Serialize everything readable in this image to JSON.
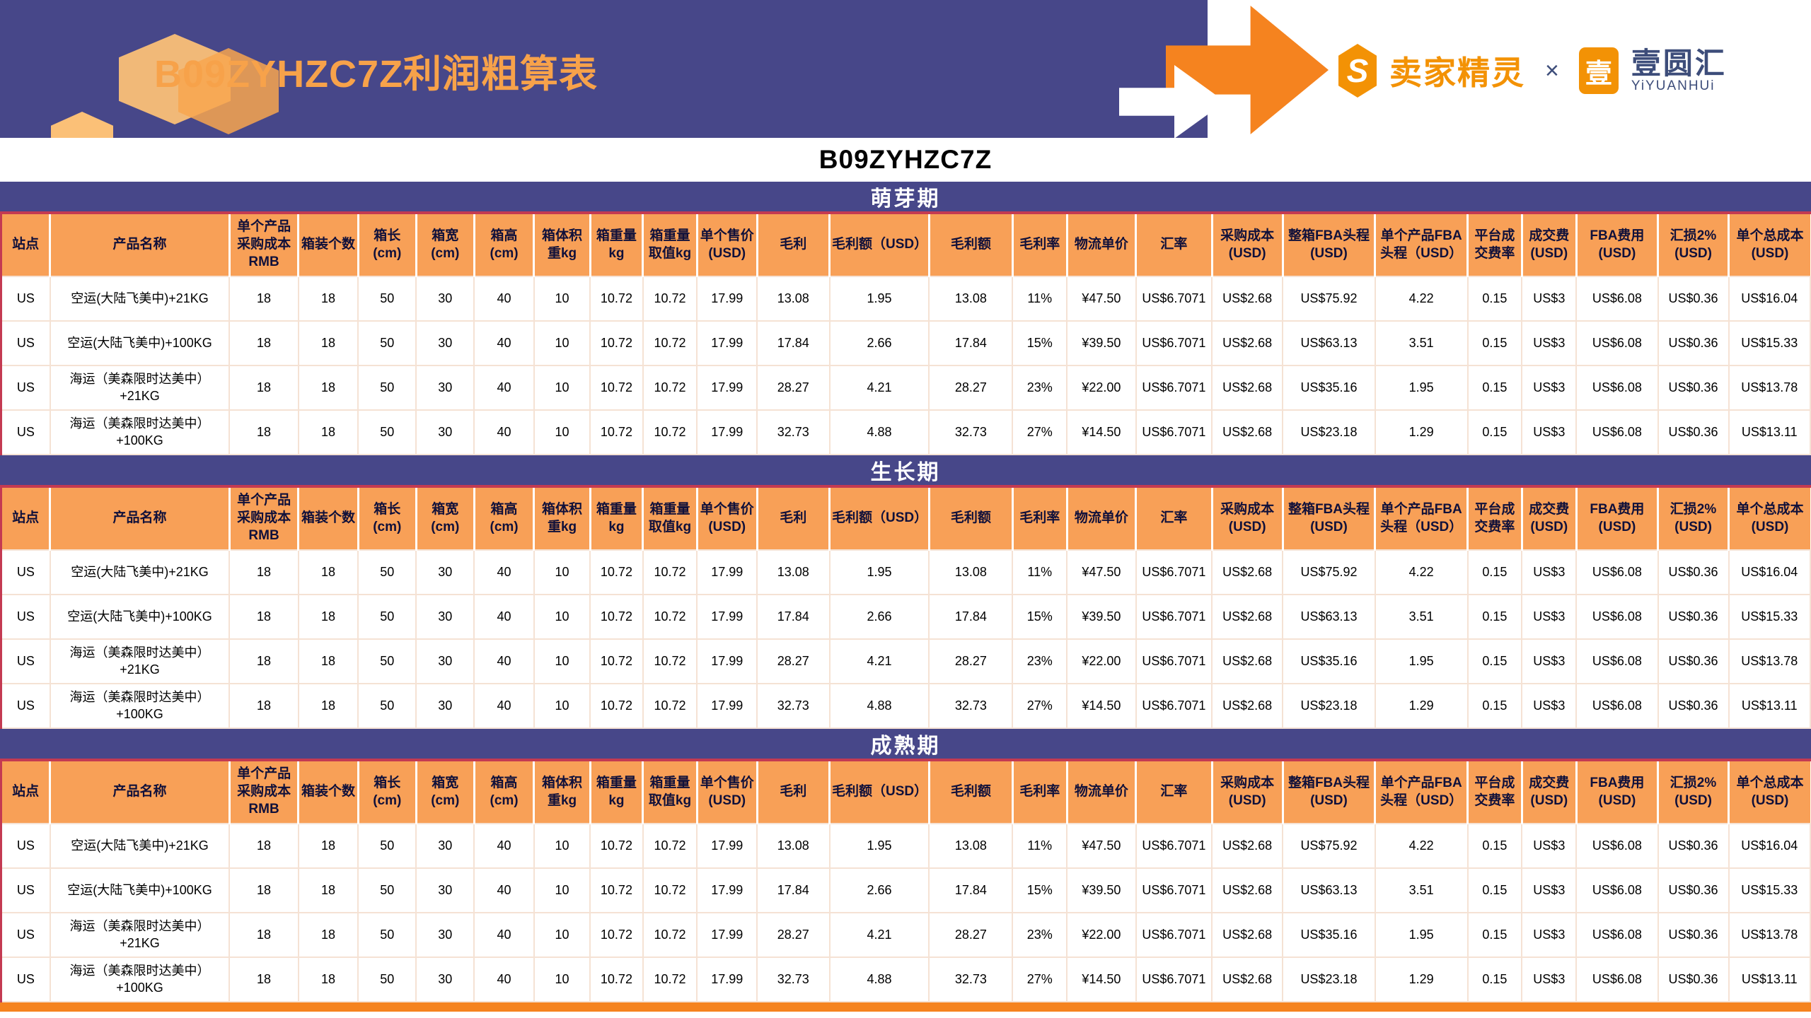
{
  "banner": {
    "title": "B09ZYHZC7Z利润粗算表",
    "sellersprite_mark": "S",
    "sellersprite_name": "卖家精灵",
    "collab_x": "×",
    "yiyuanhui_mark": "壹",
    "yiyuanhui_name": "壹圆汇",
    "yiyuanhui_sub": "YiYUANHUi"
  },
  "subtitle": "B09ZYHZC7Z",
  "colors": {
    "navy": "#474789",
    "header_orange": "#f8a057",
    "accent_orange": "#f5831f",
    "crimson_border": "#c43a52",
    "cell_border": "#f5e2d4",
    "title_orange": "#f7a24a"
  },
  "table": {
    "columns": [
      "站点",
      "产品名称",
      "单个产品采购成本RMB",
      "箱装个数",
      "箱长(cm)",
      "箱宽(cm)",
      "箱高(cm)",
      "箱体积重kg",
      "箱重量kg",
      "箱重量取值kg",
      "单个售价(USD)",
      "毛利",
      "毛利额（USD）",
      "毛利额",
      "毛利率",
      "物流单价",
      "汇率",
      "采购成本(USD)",
      "整箱FBA头程(USD)",
      "单个产品FBA头程（USD）",
      "平台成交费率",
      "成交费(USD)",
      "FBA费用(USD)",
      "汇损2%(USD)",
      "单个总成本(USD)"
    ],
    "sections": [
      {
        "name": "萌芽期",
        "rows": [
          [
            "US",
            "空运(大陆飞美中)+21KG",
            "18",
            "18",
            "50",
            "30",
            "40",
            "10",
            "10.72",
            "10.72",
            "17.99",
            "13.08",
            "1.95",
            "13.08",
            "11%",
            "¥47.50",
            "US$6.7071",
            "US$2.68",
            "US$75.92",
            "4.22",
            "0.15",
            "US$3",
            "US$6.08",
            "US$0.36",
            "US$16.04"
          ],
          [
            "US",
            "空运(大陆飞美中)+100KG",
            "18",
            "18",
            "50",
            "30",
            "40",
            "10",
            "10.72",
            "10.72",
            "17.99",
            "17.84",
            "2.66",
            "17.84",
            "15%",
            "¥39.50",
            "US$6.7071",
            "US$2.68",
            "US$63.13",
            "3.51",
            "0.15",
            "US$3",
            "US$6.08",
            "US$0.36",
            "US$15.33"
          ],
          [
            "US",
            "海运（美森限时达美中）+21KG",
            "18",
            "18",
            "50",
            "30",
            "40",
            "10",
            "10.72",
            "10.72",
            "17.99",
            "28.27",
            "4.21",
            "28.27",
            "23%",
            "¥22.00",
            "US$6.7071",
            "US$2.68",
            "US$35.16",
            "1.95",
            "0.15",
            "US$3",
            "US$6.08",
            "US$0.36",
            "US$13.78"
          ],
          [
            "US",
            "海运（美森限时达美中）+100KG",
            "18",
            "18",
            "50",
            "30",
            "40",
            "10",
            "10.72",
            "10.72",
            "17.99",
            "32.73",
            "4.88",
            "32.73",
            "27%",
            "¥14.50",
            "US$6.7071",
            "US$2.68",
            "US$23.18",
            "1.29",
            "0.15",
            "US$3",
            "US$6.08",
            "US$0.36",
            "US$13.11"
          ]
        ]
      },
      {
        "name": "生长期",
        "rows": [
          [
            "US",
            "空运(大陆飞美中)+21KG",
            "18",
            "18",
            "50",
            "30",
            "40",
            "10",
            "10.72",
            "10.72",
            "17.99",
            "13.08",
            "1.95",
            "13.08",
            "11%",
            "¥47.50",
            "US$6.7071",
            "US$2.68",
            "US$75.92",
            "4.22",
            "0.15",
            "US$3",
            "US$6.08",
            "US$0.36",
            "US$16.04"
          ],
          [
            "US",
            "空运(大陆飞美中)+100KG",
            "18",
            "18",
            "50",
            "30",
            "40",
            "10",
            "10.72",
            "10.72",
            "17.99",
            "17.84",
            "2.66",
            "17.84",
            "15%",
            "¥39.50",
            "US$6.7071",
            "US$2.68",
            "US$63.13",
            "3.51",
            "0.15",
            "US$3",
            "US$6.08",
            "US$0.36",
            "US$15.33"
          ],
          [
            "US",
            "海运（美森限时达美中）+21KG",
            "18",
            "18",
            "50",
            "30",
            "40",
            "10",
            "10.72",
            "10.72",
            "17.99",
            "28.27",
            "4.21",
            "28.27",
            "23%",
            "¥22.00",
            "US$6.7071",
            "US$2.68",
            "US$35.16",
            "1.95",
            "0.15",
            "US$3",
            "US$6.08",
            "US$0.36",
            "US$13.78"
          ],
          [
            "US",
            "海运（美森限时达美中）+100KG",
            "18",
            "18",
            "50",
            "30",
            "40",
            "10",
            "10.72",
            "10.72",
            "17.99",
            "32.73",
            "4.88",
            "32.73",
            "27%",
            "¥14.50",
            "US$6.7071",
            "US$2.68",
            "US$23.18",
            "1.29",
            "0.15",
            "US$3",
            "US$6.08",
            "US$0.36",
            "US$13.11"
          ]
        ]
      },
      {
        "name": "成熟期",
        "rows": [
          [
            "US",
            "空运(大陆飞美中)+21KG",
            "18",
            "18",
            "50",
            "30",
            "40",
            "10",
            "10.72",
            "10.72",
            "17.99",
            "13.08",
            "1.95",
            "13.08",
            "11%",
            "¥47.50",
            "US$6.7071",
            "US$2.68",
            "US$75.92",
            "4.22",
            "0.15",
            "US$3",
            "US$6.08",
            "US$0.36",
            "US$16.04"
          ],
          [
            "US",
            "空运(大陆飞美中)+100KG",
            "18",
            "18",
            "50",
            "30",
            "40",
            "10",
            "10.72",
            "10.72",
            "17.99",
            "17.84",
            "2.66",
            "17.84",
            "15%",
            "¥39.50",
            "US$6.7071",
            "US$2.68",
            "US$63.13",
            "3.51",
            "0.15",
            "US$3",
            "US$6.08",
            "US$0.36",
            "US$15.33"
          ],
          [
            "US",
            "海运（美森限时达美中）+21KG",
            "18",
            "18",
            "50",
            "30",
            "40",
            "10",
            "10.72",
            "10.72",
            "17.99",
            "28.27",
            "4.21",
            "28.27",
            "23%",
            "¥22.00",
            "US$6.7071",
            "US$2.68",
            "US$35.16",
            "1.95",
            "0.15",
            "US$3",
            "US$6.08",
            "US$0.36",
            "US$13.78"
          ],
          [
            "US",
            "海运（美森限时达美中）+100KG",
            "18",
            "18",
            "50",
            "30",
            "40",
            "10",
            "10.72",
            "10.72",
            "17.99",
            "32.73",
            "4.88",
            "32.73",
            "27%",
            "¥14.50",
            "US$6.7071",
            "US$2.68",
            "US$23.18",
            "1.29",
            "0.15",
            "US$3",
            "US$6.08",
            "US$0.36",
            "US$13.11"
          ]
        ]
      }
    ]
  }
}
